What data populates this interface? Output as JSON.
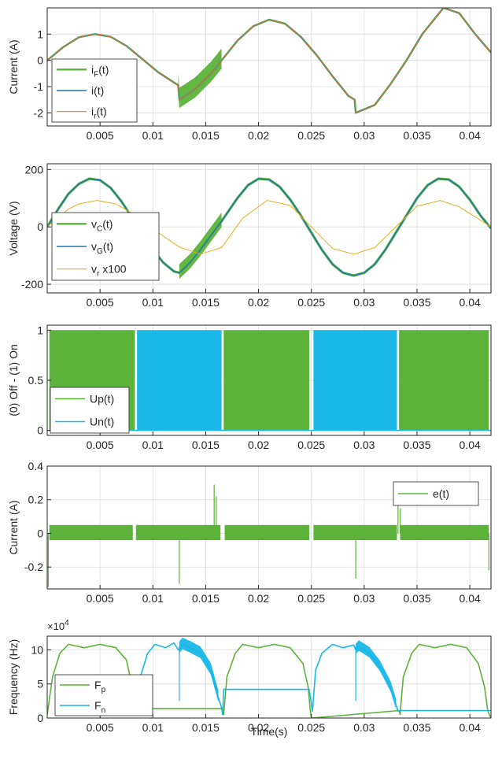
{
  "figure": {
    "xlabel": "Time(s)"
  },
  "chart_data": [
    {
      "type": "line",
      "ylabel": "Current (A)",
      "xlim": [
        0,
        0.042
      ],
      "ylim": [
        -2.5,
        2
      ],
      "xticks": [
        0.005,
        0.01,
        0.015,
        0.02,
        0.025,
        0.03,
        0.035,
        0.04
      ],
      "xtick_labels": [
        "0.005",
        "0.01",
        "0.015",
        "0.02",
        "0.025",
        "0.03",
        "0.035",
        "0.04"
      ],
      "yticks": [
        -2,
        -1,
        0,
        1
      ],
      "ytick_labels": [
        "-2",
        "-1",
        "0",
        "1"
      ],
      "grid": true,
      "legend_position": "bottom-left",
      "series": [
        {
          "name": "i_F(t)",
          "legend": [
            {
              "t": "i"
            },
            {
              "t": "F",
              "sub": true
            },
            {
              "t": "(t)"
            }
          ],
          "color": "#5db33a",
          "width": 2.5,
          "x": [
            0,
            0.0015,
            0.003,
            0.0045,
            0.006,
            0.0075,
            0.009,
            0.0105,
            0.0124,
            0.0125,
            0.014,
            0.0155,
            0.0165,
            0.018,
            0.0195,
            0.021,
            0.0225,
            0.024,
            0.0255,
            0.027,
            0.0285,
            0.0291,
            0.0292,
            0.031,
            0.0325,
            0.034,
            0.0355,
            0.0375,
            0.039,
            0.0405,
            0.042
          ],
          "y": [
            0,
            0.5,
            0.88,
            1.0,
            0.9,
            0.55,
            0.05,
            -0.45,
            -0.95,
            -1.5,
            -1.1,
            -0.5,
            0.0,
            0.75,
            1.3,
            1.55,
            1.4,
            0.9,
            0.2,
            -0.6,
            -1.35,
            -1.5,
            -2.0,
            -1.7,
            -0.9,
            0.0,
            1.0,
            2.0,
            1.8,
            1.0,
            0.3
          ],
          "band": [
            [
              0.0124,
              0.0165,
              0.45
            ]
          ]
        },
        {
          "name": "i(t)",
          "legend": [
            {
              "t": "i(t)"
            }
          ],
          "color": "#1f77b4",
          "width": 1.6,
          "x": [
            0,
            0.0015,
            0.003,
            0.0045,
            0.006,
            0.0075,
            0.009,
            0.0105,
            0.0124,
            0.0125,
            0.014,
            0.0155,
            0.0165,
            0.018,
            0.0195,
            0.021,
            0.0225,
            0.024,
            0.0255,
            0.027,
            0.0285,
            0.0291,
            0.0292,
            0.031,
            0.0325,
            0.034,
            0.0355,
            0.0375,
            0.039,
            0.0405,
            0.042
          ],
          "y": [
            0,
            0.5,
            0.88,
            1.0,
            0.9,
            0.55,
            0.05,
            -0.45,
            -0.95,
            -1.5,
            -1.1,
            -0.5,
            0.0,
            0.75,
            1.3,
            1.55,
            1.4,
            0.9,
            0.2,
            -0.6,
            -1.35,
            -1.5,
            -2.0,
            -1.7,
            -0.9,
            0.0,
            1.0,
            2.0,
            1.8,
            1.0,
            0.3
          ]
        },
        {
          "name": "i_r(t)",
          "legend": [
            {
              "t": "i"
            },
            {
              "t": "r",
              "sub": true
            },
            {
              "t": "(t)"
            }
          ],
          "color": "#e07b39",
          "width": 1.0,
          "x": [
            0,
            0.0015,
            0.003,
            0.0045,
            0.006,
            0.0075,
            0.009,
            0.0105,
            0.0124,
            0.0125,
            0.014,
            0.0155,
            0.0165,
            0.018,
            0.0195,
            0.021,
            0.0225,
            0.024,
            0.0255,
            0.027,
            0.0285,
            0.0291,
            0.0292,
            0.031,
            0.0325,
            0.034,
            0.0355,
            0.0375,
            0.039,
            0.0405,
            0.042
          ],
          "y": [
            0,
            0.5,
            0.88,
            1.0,
            0.9,
            0.55,
            0.05,
            -0.45,
            -0.95,
            -1.5,
            -1.1,
            -0.5,
            0.0,
            0.75,
            1.3,
            1.55,
            1.4,
            0.9,
            0.2,
            -0.6,
            -1.35,
            -1.5,
            -2.0,
            -1.7,
            -0.9,
            0.0,
            1.0,
            2.0,
            1.8,
            1.0,
            0.3
          ]
        }
      ]
    },
    {
      "type": "line",
      "ylabel": "Voltage (V)",
      "xlim": [
        0,
        0.042
      ],
      "ylim": [
        -230,
        220
      ],
      "xticks": [
        0.005,
        0.01,
        0.015,
        0.02,
        0.025,
        0.03,
        0.035,
        0.04
      ],
      "xtick_labels": [
        "0.005",
        "0.01",
        "0.015",
        "0.02",
        "0.025",
        "0.03",
        "0.035",
        "0.04"
      ],
      "yticks": [
        -200,
        0,
        200
      ],
      "ytick_labels": [
        "-200",
        "0",
        "200"
      ],
      "grid": true,
      "legend_position": "bottom-left",
      "series": [
        {
          "name": "v_C(t)",
          "legend": [
            {
              "t": "v"
            },
            {
              "t": "C",
              "sub": true
            },
            {
              "t": "(t)"
            }
          ],
          "color": "#5db33a",
          "width": 3.2,
          "x": [
            0,
            0.001,
            0.002,
            0.003,
            0.004,
            0.005,
            0.006,
            0.007,
            0.008,
            0.009,
            0.01,
            0.011,
            0.012,
            0.0125,
            0.0135,
            0.0145,
            0.0155,
            0.0165,
            0.018,
            0.019,
            0.02,
            0.021,
            0.022,
            0.023,
            0.024,
            0.025,
            0.026,
            0.027,
            0.028,
            0.029,
            0.03,
            0.031,
            0.032,
            0.033,
            0.034,
            0.035,
            0.036,
            0.037,
            0.038,
            0.039,
            0.04,
            0.041,
            0.042
          ],
          "y": [
            0,
            60,
            115,
            150,
            168,
            163,
            136,
            90,
            35,
            -25,
            -80,
            -125,
            -155,
            -160,
            -125,
            -80,
            -30,
            20,
            100,
            145,
            168,
            165,
            140,
            95,
            40,
            -20,
            -80,
            -130,
            -160,
            -170,
            -160,
            -130,
            -80,
            -20,
            40,
            100,
            145,
            168,
            165,
            140,
            95,
            40,
            -5
          ],
          "band": [
            [
              0.0125,
              0.0165,
              30
            ]
          ]
        },
        {
          "name": "v_G(t)",
          "legend": [
            {
              "t": "v"
            },
            {
              "t": "G",
              "sub": true
            },
            {
              "t": "(t)"
            }
          ],
          "color": "#1f77b4",
          "width": 1.5,
          "x": [
            0,
            0.001,
            0.002,
            0.003,
            0.004,
            0.005,
            0.006,
            0.007,
            0.008,
            0.009,
            0.01,
            0.011,
            0.012,
            0.0125,
            0.0135,
            0.0145,
            0.0155,
            0.0165,
            0.018,
            0.019,
            0.02,
            0.021,
            0.022,
            0.023,
            0.024,
            0.025,
            0.026,
            0.027,
            0.028,
            0.029,
            0.03,
            0.031,
            0.032,
            0.033,
            0.034,
            0.035,
            0.036,
            0.037,
            0.038,
            0.039,
            0.04,
            0.041,
            0.042
          ],
          "y": [
            0,
            60,
            115,
            150,
            168,
            163,
            136,
            90,
            35,
            -25,
            -80,
            -125,
            -155,
            -160,
            -125,
            -80,
            -30,
            20,
            100,
            145,
            168,
            165,
            140,
            95,
            40,
            -20,
            -80,
            -130,
            -160,
            -170,
            -160,
            -130,
            -80,
            -20,
            40,
            100,
            145,
            168,
            165,
            140,
            95,
            40,
            -5
          ]
        },
        {
          "name": "v_r x100",
          "legend": [
            {
              "t": "v"
            },
            {
              "t": "r",
              "sub": true
            },
            {
              "t": " x100"
            }
          ],
          "color": "#e8b020",
          "width": 1.0,
          "x": [
            0,
            0.002,
            0.003,
            0.0047,
            0.0065,
            0.0085,
            0.0105,
            0.0125,
            0.0145,
            0.0165,
            0.0185,
            0.0208,
            0.023,
            0.025,
            0.027,
            0.029,
            0.031,
            0.033,
            0.035,
            0.0372,
            0.039,
            0.042
          ],
          "y": [
            0,
            62,
            80,
            92,
            80,
            38,
            -20,
            -70,
            -95,
            -72,
            30,
            92,
            75,
            0,
            -75,
            -95,
            -72,
            0,
            72,
            92,
            70,
            0
          ]
        }
      ]
    },
    {
      "type": "area",
      "ylabel": "(0) Off - (1) On",
      "xlim": [
        0,
        0.042
      ],
      "ylim": [
        -0.05,
        1.05
      ],
      "xticks": [
        0.005,
        0.01,
        0.015,
        0.02,
        0.025,
        0.03,
        0.035,
        0.04
      ],
      "xtick_labels": [
        "0.005",
        "0.01",
        "0.015",
        "0.02",
        "0.025",
        "0.03",
        "0.035",
        "0.04"
      ],
      "yticks": [
        0,
        0.5,
        1
      ],
      "ytick_labels": [
        "0",
        "0.5",
        "1"
      ],
      "grid": true,
      "legend_position": "bottom-left",
      "series": [
        {
          "name": "Up(t)",
          "legend": [
            {
              "t": "Up(t)"
            }
          ],
          "color": "#5db33a",
          "intervals": [
            [
              0.0002,
              0.0083
            ],
            [
              0.0167,
              0.0248
            ],
            [
              0.0333,
              0.0418
            ]
          ]
        },
        {
          "name": "Un(t)",
          "legend": [
            {
              "t": "Un(t)"
            }
          ],
          "color": "#19b8e8",
          "intervals": [
            [
              0.0085,
              0.0165
            ],
            [
              0.0252,
              0.0331
            ]
          ]
        }
      ]
    },
    {
      "type": "line",
      "ylabel": "Current (A)",
      "xlim": [
        0,
        0.042
      ],
      "ylim": [
        -0.33,
        0.4
      ],
      "xticks": [
        0.005,
        0.01,
        0.015,
        0.02,
        0.025,
        0.03,
        0.035,
        0.04
      ],
      "xtick_labels": [
        "0.005",
        "0.01",
        "0.015",
        "0.02",
        "0.025",
        "0.03",
        "0.035",
        "0.04"
      ],
      "yticks": [
        -0.2,
        0,
        0.2,
        0.4
      ],
      "ytick_labels": [
        "-0.2",
        "0",
        "0.2",
        "0.4"
      ],
      "grid": true,
      "legend_position": "top-right",
      "series": [
        {
          "name": "e(t)",
          "legend": [
            {
              "t": "e(t)"
            }
          ],
          "color": "#5db33a",
          "band_segments": [
            [
              0.0002,
              0.0081,
              -0.04,
              0.05
            ],
            [
              0.0084,
              0.0164,
              -0.04,
              0.05
            ],
            [
              0.0168,
              0.0248,
              -0.04,
              0.05
            ],
            [
              0.0252,
              0.0331,
              -0.04,
              0.05
            ],
            [
              0.0334,
              0.0418,
              -0.04,
              0.05
            ]
          ],
          "spikes": [
            [
              0.0001,
              -0.32
            ],
            [
              0.0125,
              -0.3
            ],
            [
              0.0158,
              0.29
            ],
            [
              0.016,
              0.22
            ],
            [
              0.0292,
              -0.27
            ],
            [
              0.0332,
              0.18
            ],
            [
              0.0334,
              0.15
            ],
            [
              0.0418,
              -0.22
            ]
          ]
        }
      ]
    },
    {
      "type": "line",
      "ylabel": "Frequency (Hz)",
      "multiplier": "×10",
      "multiplier_exp": "4",
      "xlim": [
        0,
        0.042
      ],
      "ylim": [
        0,
        120000
      ],
      "xticks": [
        0.005,
        0.01,
        0.015,
        0.02,
        0.025,
        0.03,
        0.035,
        0.04
      ],
      "xtick_labels": [
        "0.005",
        "0.01",
        "0.015",
        "0.02",
        "0.025",
        "0.03",
        "0.035",
        "0.04"
      ],
      "yticks": [
        0,
        50000,
        100000
      ],
      "ytick_labels": [
        "0",
        "5",
        "10"
      ],
      "grid": true,
      "legend_position": "bottom-left",
      "series": [
        {
          "name": "F_p",
          "legend": [
            {
              "t": "F"
            },
            {
              "t": "p",
              "sub": true
            }
          ],
          "color": "#5db33a",
          "width": 1.6,
          "x": [
            0,
            0.0005,
            0.0012,
            0.002,
            0.0035,
            0.005,
            0.0065,
            0.0075,
            0.008,
            0.0083,
            0.0084,
            0.0166,
            0.0167,
            0.017,
            0.0178,
            0.0185,
            0.02,
            0.0215,
            0.023,
            0.0242,
            0.0247,
            0.0249,
            0.025,
            0.0333,
            0.0334,
            0.0337,
            0.0345,
            0.0352,
            0.0367,
            0.0382,
            0.0397,
            0.0408,
            0.0414,
            0.0417,
            0.042
          ],
          "y": [
            5000,
            60000,
            95000,
            108000,
            103000,
            108000,
            103000,
            85000,
            50000,
            15000,
            14000,
            14000,
            5000,
            60000,
            95000,
            108000,
            103000,
            108000,
            103000,
            80000,
            45000,
            10000,
            0,
            11000,
            5000,
            60000,
            95000,
            108000,
            103000,
            108000,
            103000,
            80000,
            45000,
            10000,
            0
          ]
        },
        {
          "name": "F_n",
          "legend": [
            {
              "t": "F"
            },
            {
              "t": "n",
              "sub": true
            }
          ],
          "color": "#19b8e8",
          "width": 1.6,
          "x": [
            0.0,
            0.0084,
            0.0085,
            0.0088,
            0.0095,
            0.0102,
            0.0112,
            0.012,
            0.0124,
            0.0128,
            0.0135,
            0.0145,
            0.0155,
            0.0162,
            0.0165,
            0.0166,
            0.0167,
            0.0248,
            0.0251,
            0.0254,
            0.026,
            0.027,
            0.028,
            0.029,
            0.0292,
            0.0295,
            0.0305,
            0.0315,
            0.0325,
            0.033,
            0.0332,
            0.0333,
            0.042
          ],
          "y": [
            null,
            null,
            5000,
            60000,
            95000,
            108000,
            103000,
            110000,
            100000,
            108000,
            103000,
            95000,
            70000,
            30000,
            15000,
            5000,
            42000,
            42000,
            10000,
            70000,
            95000,
            108000,
            103000,
            107000,
            100000,
            105000,
            95000,
            75000,
            45000,
            20000,
            10000,
            11000,
            11000
          ],
          "band": [
            [
              0.0125,
              0.0162,
              10000
            ],
            [
              0.0292,
              0.033,
              9000
            ]
          ],
          "spikes": [
            [
              0.0125,
              25000
            ],
            [
              0.0292,
              25000
            ]
          ]
        }
      ]
    }
  ]
}
